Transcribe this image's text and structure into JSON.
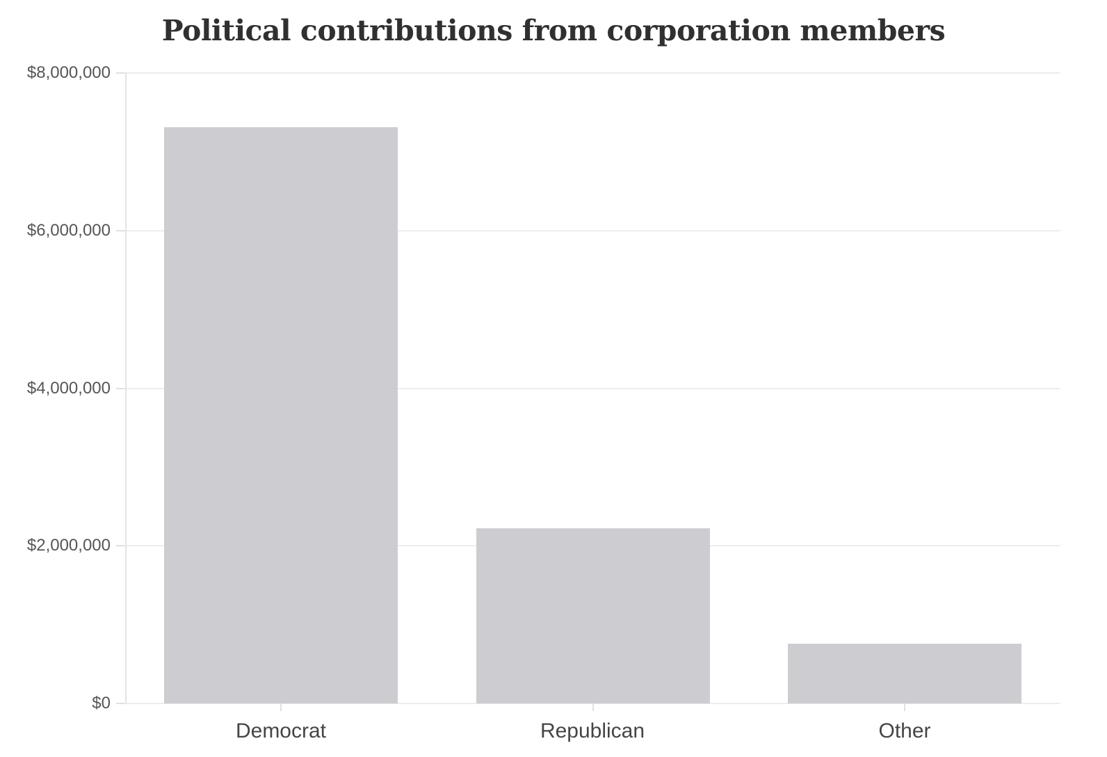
{
  "chart_data": {
    "type": "bar",
    "title": "Political contributions from corporation members",
    "categories": [
      "Democrat",
      "Republican",
      "Other"
    ],
    "values": [
      7310000,
      2220000,
      760000
    ],
    "xlabel": "",
    "ylabel": "",
    "ylim": [
      0,
      8000000
    ],
    "ytick_step": 2000000,
    "yticks": [
      {
        "value": 0,
        "label": "$0"
      },
      {
        "value": 2000000,
        "label": "$2,000,000"
      },
      {
        "value": 4000000,
        "label": "$4,000,000"
      },
      {
        "value": 6000000,
        "label": "$6,000,000"
      },
      {
        "value": 8000000,
        "label": "$8,000,000"
      }
    ],
    "grid": true,
    "legend": "none",
    "colors": {
      "bar_fill": "#cdcdd1",
      "gridline": "#ededed",
      "axis_line": "#e4e4e4",
      "tick": "#e0e0e0",
      "title_text": "#303030",
      "y_label_text": "#565656",
      "x_label_text": "#454545",
      "background": "#ffffff"
    }
  }
}
